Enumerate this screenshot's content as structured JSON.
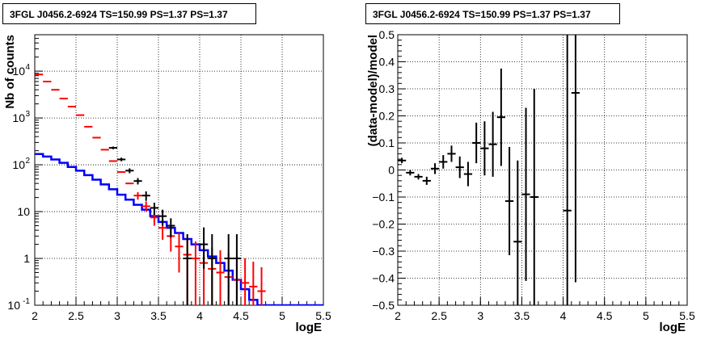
{
  "chart_data": [
    {
      "type": "line",
      "title": "3FGL J0456.2-6924 TS=150.99 PS=1.37 PS=1.37",
      "xlabel": "logE",
      "ylabel": "Nb of counts",
      "xlim": [
        2,
        5.5
      ],
      "ylim": [
        0.1,
        60000
      ],
      "yscale": "log",
      "grid": true,
      "xticks": [
        "2",
        "2.5",
        "3",
        "3.5",
        "4",
        "4.5",
        "5",
        "5.5"
      ],
      "yticks": [
        {
          "value": 0.1,
          "label": "10",
          "exp": "-1"
        },
        {
          "value": 1,
          "label": "1",
          "exp": ""
        },
        {
          "value": 10,
          "label": "10",
          "exp": ""
        },
        {
          "value": 100,
          "label": "10",
          "exp": "2"
        },
        {
          "value": 1000,
          "label": "10",
          "exp": "3"
        },
        {
          "value": 10000,
          "label": "10",
          "exp": "4"
        }
      ],
      "bin_width": 0.1,
      "series": [
        {
          "color": "#0000ff",
          "style": "step",
          "x": [
            2.05,
            2.15,
            2.25,
            2.35,
            2.45,
            2.55,
            2.65,
            2.75,
            2.85,
            2.95,
            3.05,
            3.15,
            3.25,
            3.35,
            3.45,
            3.55,
            3.65,
            3.75,
            3.85,
            3.95,
            4.05,
            4.15,
            4.25,
            4.35,
            4.45,
            4.55,
            4.65,
            4.75,
            4.85,
            4.95,
            5.05,
            5.15,
            5.25,
            5.35,
            5.45
          ],
          "y": [
            170,
            150,
            130,
            110,
            90,
            75,
            60,
            48,
            38,
            30,
            23,
            18,
            14,
            11,
            8,
            6,
            4.5,
            3.5,
            2.6,
            2.0,
            1.5,
            1.1,
            0.8,
            0.55,
            0.35,
            0.22,
            0.13,
            0.09,
            0.1,
            0.1,
            0.1,
            0.1,
            0.1,
            0.1,
            0.1
          ]
        },
        {
          "color": "#ff0000",
          "style": "errorbar",
          "x": [
            2.05,
            2.15,
            2.25,
            2.35,
            2.45,
            2.55,
            2.65,
            2.75,
            2.85,
            2.95,
            3.05,
            3.15,
            3.25,
            3.35,
            3.45,
            3.55,
            3.65,
            3.75,
            3.85,
            3.95,
            4.05,
            4.15,
            4.25,
            4.35,
            4.45,
            4.55,
            4.65,
            4.75
          ],
          "y": [
            8500,
            6000,
            4000,
            2600,
            1750,
            1150,
            650,
            380,
            210,
            120,
            70,
            40,
            22,
            13,
            7.5,
            4.5,
            3.0,
            1.8,
            1.2,
            1.0,
            0.8,
            0.6,
            0.5,
            0.4,
            0.35,
            0.3,
            0.25,
            0.2
          ],
          "err_low": [
            0,
            0,
            0,
            0,
            0,
            0,
            0,
            0,
            0,
            0,
            0,
            0,
            4,
            3,
            2.5,
            2,
            1.6,
            1.3,
            1.1,
            0.95,
            0.79,
            0.59,
            0.49,
            0.39,
            0.34,
            0.29,
            0.24,
            0.19
          ],
          "err_high": [
            0,
            0,
            0,
            0,
            0,
            0,
            0,
            0,
            0,
            0,
            0,
            0,
            4,
            3.5,
            3,
            2.5,
            2,
            1.7,
            1.5,
            1.3,
            1.2,
            1.1,
            1.0,
            0.9,
            0.8,
            0.7,
            0.6,
            0.45
          ]
        },
        {
          "color": "#000000",
          "style": "errorbar",
          "x": [
            2.95,
            3.05,
            3.15,
            3.25,
            3.35,
            3.45,
            3.55,
            3.65,
            3.85,
            4.05,
            4.15,
            4.35,
            4.45
          ],
          "y": [
            230,
            130,
            75,
            45,
            22,
            12,
            8,
            5,
            1,
            2,
            1,
            1,
            1
          ],
          "err_low": [
            15,
            11,
            9,
            7,
            5,
            3.5,
            3,
            2.2,
            0.9,
            1.4,
            0.9,
            0.9,
            0.9
          ],
          "err_high": [
            15,
            12,
            9,
            7,
            5,
            3.5,
            3,
            2.2,
            2.3,
            2.6,
            2.3,
            2.3,
            2.3
          ]
        }
      ]
    },
    {
      "type": "scatter",
      "title": "3FGL J0456.2-6924 TS=150.99 PS=1.37 PS=1.37",
      "xlabel": "logE",
      "ylabel": "(data-model)/model",
      "xlim": [
        2,
        5.5
      ],
      "ylim": [
        -0.5,
        0.5
      ],
      "grid": true,
      "xticks": [
        "2",
        "2.5",
        "3",
        "3.5",
        "4",
        "4.5",
        "5",
        "5.5"
      ],
      "yticks": [
        "-0.5",
        "-0.4",
        "-0.3",
        "-0.2",
        "-0.1",
        "0",
        "0.1",
        "0.2",
        "0.3",
        "0.4",
        "0.5"
      ],
      "bin_width": 0.1,
      "series": [
        {
          "color": "#000000",
          "x": [
            2.05,
            2.15,
            2.25,
            2.35,
            2.45,
            2.55,
            2.65,
            2.75,
            2.85,
            2.95,
            3.05,
            3.15,
            3.25,
            3.35,
            3.45,
            3.55,
            3.65,
            4.05,
            4.15
          ],
          "y": [
            0.035,
            -0.01,
            -0.025,
            -0.04,
            0.005,
            0.03,
            0.06,
            0.01,
            -0.015,
            0.1,
            0.08,
            0.095,
            0.195,
            -0.115,
            -0.265,
            -0.09,
            -0.1,
            -0.15,
            0.285
          ],
          "err": [
            0.01,
            0.01,
            0.01,
            0.015,
            0.02,
            0.025,
            0.03,
            0.04,
            0.045,
            0.075,
            0.1,
            0.12,
            0.18,
            0.2,
            0.3,
            0.32,
            0.4,
            0.7,
            0.7
          ]
        }
      ]
    }
  ]
}
